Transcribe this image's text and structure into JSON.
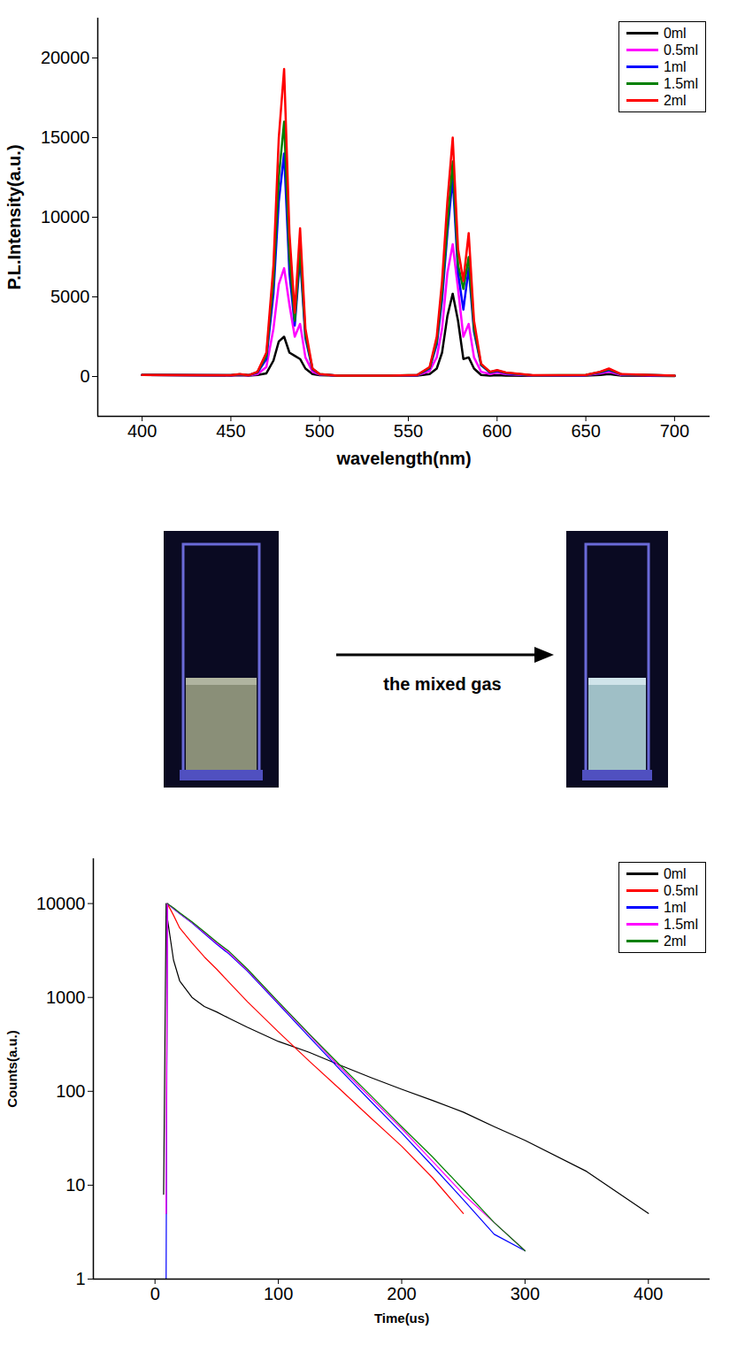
{
  "chart_data": [
    {
      "type": "line",
      "x_label": "wavelength(nm)",
      "y_label": "P.L.Intensity(a.u.)",
      "xlim": [
        375,
        720
      ],
      "xticks": [
        400,
        450,
        500,
        550,
        600,
        650,
        700
      ],
      "ylim": [
        -2500,
        22500
      ],
      "yticks": [
        0,
        5000,
        10000,
        15000,
        20000
      ],
      "grid": false,
      "legend": "top-right",
      "x": [
        400,
        450,
        455,
        460,
        465,
        470,
        474,
        477,
        480,
        483,
        486,
        489,
        492,
        496,
        500,
        510,
        540,
        555,
        562,
        566,
        569,
        572,
        575,
        578,
        581,
        584,
        587,
        591,
        596,
        600,
        605,
        620,
        650,
        658,
        663,
        670,
        700
      ],
      "series": [
        {
          "name": "0ml",
          "color": "#000000",
          "values": [
            100,
            60,
            80,
            60,
            100,
            200,
            1000,
            2200,
            2500,
            1500,
            1300,
            1100,
            500,
            150,
            80,
            50,
            40,
            60,
            150,
            500,
            1500,
            3800,
            5200,
            3500,
            1100,
            1200,
            500,
            100,
            60,
            80,
            60,
            40,
            50,
            100,
            150,
            60,
            30
          ]
        },
        {
          "name": "0.5ml",
          "color": "#ff00ff",
          "values": [
            100,
            70,
            100,
            70,
            150,
            600,
            3000,
            5800,
            6800,
            4500,
            2500,
            3300,
            1200,
            300,
            120,
            50,
            40,
            80,
            350,
            1200,
            3000,
            6500,
            8300,
            5500,
            2500,
            3300,
            1200,
            300,
            150,
            250,
            150,
            60,
            80,
            200,
            300,
            100,
            40
          ]
        },
        {
          "name": "1ml",
          "color": "#0000ff",
          "values": [
            100,
            80,
            130,
            80,
            250,
            1100,
            5200,
            11000,
            14000,
            6500,
            3200,
            7500,
            2400,
            450,
            140,
            60,
            50,
            90,
            500,
            2000,
            4800,
            9000,
            12500,
            6500,
            4200,
            6800,
            2800,
            700,
            250,
            350,
            200,
            70,
            90,
            250,
            400,
            130,
            50
          ]
        },
        {
          "name": "1.5ml",
          "color": "#008000",
          "values": [
            100,
            80,
            140,
            80,
            280,
            1300,
            6000,
            12500,
            16000,
            7500,
            3500,
            8000,
            2600,
            480,
            150,
            60,
            50,
            95,
            550,
            2200,
            5300,
            9500,
            13500,
            7000,
            5500,
            7500,
            3000,
            750,
            280,
            380,
            230,
            75,
            95,
            280,
            450,
            140,
            50
          ]
        },
        {
          "name": "2ml",
          "color": "#ff0000",
          "values": [
            100,
            80,
            150,
            80,
            300,
            1500,
            7000,
            15000,
            19300,
            9000,
            4000,
            9300,
            3000,
            500,
            150,
            60,
            50,
            100,
            600,
            2500,
            6000,
            11000,
            15000,
            8000,
            6000,
            9000,
            3500,
            800,
            300,
            400,
            250,
            80,
            100,
            300,
            500,
            150,
            50
          ]
        }
      ]
    },
    {
      "type": "line",
      "x_label": "Time(us)",
      "y_label": "Counts(a.u.)",
      "xlim": [
        -50,
        450
      ],
      "xticks": [
        0,
        100,
        200,
        300,
        400
      ],
      "ylim": [
        1,
        30000
      ],
      "yticks": [
        1,
        10,
        100,
        1000,
        10000
      ],
      "log": "y",
      "grid": false,
      "legend": "top-right",
      "x": [
        7,
        9,
        10,
        15,
        20,
        30,
        40,
        50,
        60,
        75,
        100,
        125,
        150,
        175,
        200,
        225,
        250,
        275,
        300,
        350,
        400
      ],
      "series": [
        {
          "name": "0ml",
          "color": "#000000",
          "values": [
            8,
            10000,
            7000,
            2500,
            1500,
            1000,
            800,
            700,
            600,
            480,
            340,
            260,
            190,
            140,
            105,
            80,
            60,
            42,
            30,
            14,
            5
          ]
        },
        {
          "name": "0.5ml",
          "color": "#ff0000",
          "values": [
            null,
            5,
            10000,
            7500,
            5500,
            3800,
            2700,
            2000,
            1450,
            900,
            430,
            210,
            105,
            52,
            26,
            12,
            5,
            null,
            null,
            null,
            null
          ]
        },
        {
          "name": "1ml",
          "color": "#0000ff",
          "values": [
            null,
            1,
            10000,
            8800,
            7800,
            6200,
            4800,
            3700,
            2900,
            1900,
            850,
            380,
            170,
            78,
            36,
            16,
            7,
            3,
            2,
            null,
            null
          ]
        },
        {
          "name": "1.5ml",
          "color": "#ff00ff",
          "values": [
            null,
            5,
            10000,
            8900,
            7900,
            6300,
            4900,
            3800,
            3000,
            1950,
            880,
            400,
            180,
            85,
            40,
            18,
            8,
            4,
            2,
            null,
            null
          ]
        },
        {
          "name": "2ml",
          "color": "#008000",
          "values": [
            null,
            null,
            10000,
            9000,
            8000,
            6400,
            5000,
            3900,
            3100,
            2000,
            900,
            410,
            190,
            90,
            42,
            20,
            9,
            4,
            2,
            null,
            null
          ]
        }
      ]
    }
  ],
  "figure": {
    "arrow_label": "the mixed gas"
  }
}
